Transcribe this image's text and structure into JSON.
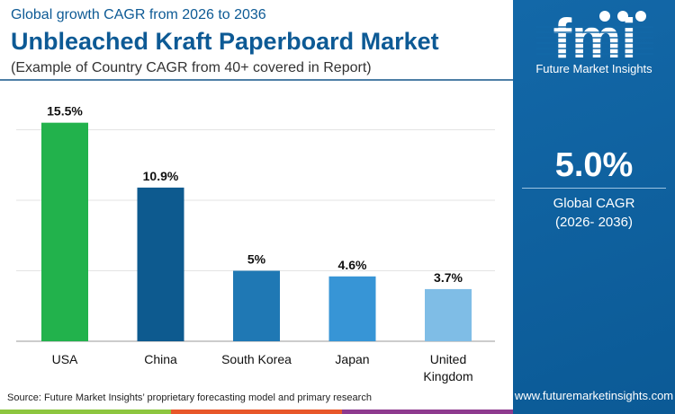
{
  "header": {
    "subtitle": "Global growth CAGR from 2026 to 2036",
    "title": "Unbleached Kraft Paperboard Market",
    "note": "(Example of Country CAGR from 40+ covered in Report)"
  },
  "side": {
    "logo_text": "fmi",
    "brand": "Future Market Insights",
    "cagr_value": "5.0%",
    "cagr_label": "Global CAGR",
    "cagr_period": "(2026- 2036)",
    "url": "www.futuremarketinsights.com",
    "background": "#0e5f9e"
  },
  "footer": {
    "source": "Source: Future Market Insights’ proprietary forecasting model and primary research",
    "strip_colors": [
      "#8dc63f",
      "#e8572a",
      "#8e3a8f",
      "#0e5f9e"
    ]
  },
  "chart_data": {
    "type": "bar",
    "categories": [
      "USA",
      "China",
      "South Korea",
      "Japan",
      "United Kingdom"
    ],
    "values": [
      15.5,
      10.9,
      5,
      4.6,
      3.7
    ],
    "data_labels": [
      "15.5%",
      "10.9%",
      "5%",
      "4.6%",
      "3.7%"
    ],
    "colors": [
      "#22b24c",
      "#0d5a8f",
      "#1f78b4",
      "#3795d6",
      "#7fbde6"
    ],
    "ylim": [
      0,
      20
    ],
    "gridlines": [
      5,
      10,
      15
    ],
    "grid": true
  }
}
